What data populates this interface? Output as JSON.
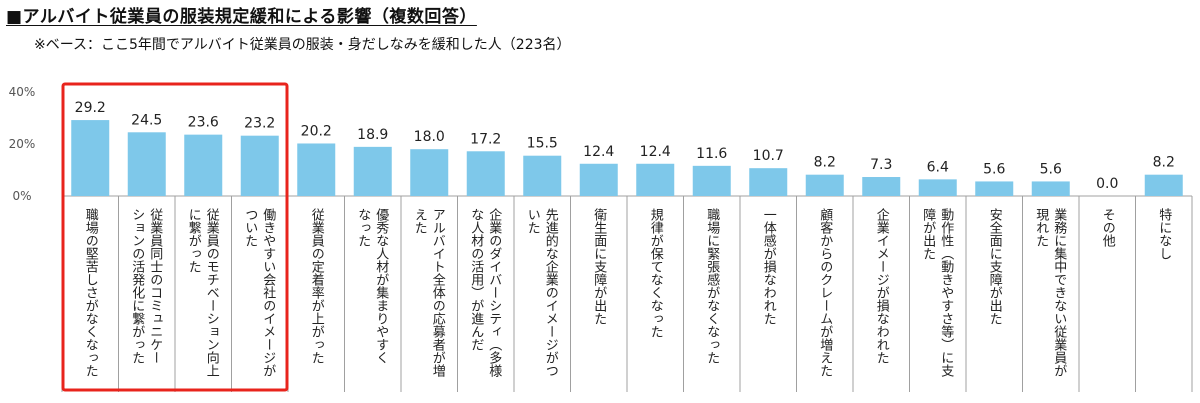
{
  "title": "■アルバイト従業員の服装規定緩和による影響（複数回答）",
  "subtitle": "※ベース：ここ5年間でアルバイト従業員の服装・身だしなみを緩和した人（223名）",
  "colors": {
    "bar": "#7ec8ea",
    "highlight": "#e8241c",
    "grid": "#d0d0d0",
    "divider": "#a0a0a0"
  },
  "chart_data": {
    "type": "bar",
    "ylim": [
      0,
      40
    ],
    "yticks": [
      "0%",
      "20%",
      "40%"
    ],
    "categories": [
      [
        "職場の堅苦しさがなくなった"
      ],
      [
        "従業員同士のコミュニケー",
        "ションの活発化に繋がった"
      ],
      [
        "従業員のモチベーション向上",
        "に繋がった"
      ],
      [
        "働きやすい会社のイメージが",
        "ついた"
      ],
      [
        "従業員の定着率が上がった"
      ],
      [
        "優秀な人材が集まりやすく",
        "なった"
      ],
      [
        "アルバイト全体の応募者が増",
        "えた"
      ],
      [
        "企業のダイバーシティ（多様",
        "な人材の活用）が進んだ"
      ],
      [
        "先進的な企業のイメージがつ",
        "いた"
      ],
      [
        "衛生面に支障が出た"
      ],
      [
        "規律が保てなくなった"
      ],
      [
        "職場に緊張感がなくなった"
      ],
      [
        "一体感が損なわれた"
      ],
      [
        "顧客からのクレームが増えた"
      ],
      [
        "企業イメージが損なわれた"
      ],
      [
        "動作性（動きやすさ等）に支",
        "障が出た"
      ],
      [
        "安全面に支障が出た"
      ],
      [
        "業務に集中できない従業員が",
        "現れた"
      ],
      [
        "その他"
      ],
      [
        "特になし"
      ]
    ],
    "values": [
      29.2,
      24.5,
      23.6,
      23.2,
      20.2,
      18.9,
      18.0,
      17.2,
      15.5,
      12.4,
      12.4,
      11.6,
      10.7,
      8.2,
      7.3,
      6.4,
      5.6,
      5.6,
      0.0,
      8.2
    ],
    "value_labels": [
      "29.2",
      "24.5",
      "23.6",
      "23.2",
      "20.2",
      "18.9",
      "18.0",
      "17.2",
      "15.5",
      "12.4",
      "12.4",
      "11.6",
      "10.7",
      "8.2",
      "7.3",
      "6.4",
      "5.6",
      "5.6",
      "0.0",
      "8.2"
    ],
    "highlighted_categories": [
      0,
      1,
      2,
      3
    ],
    "grid": false
  }
}
